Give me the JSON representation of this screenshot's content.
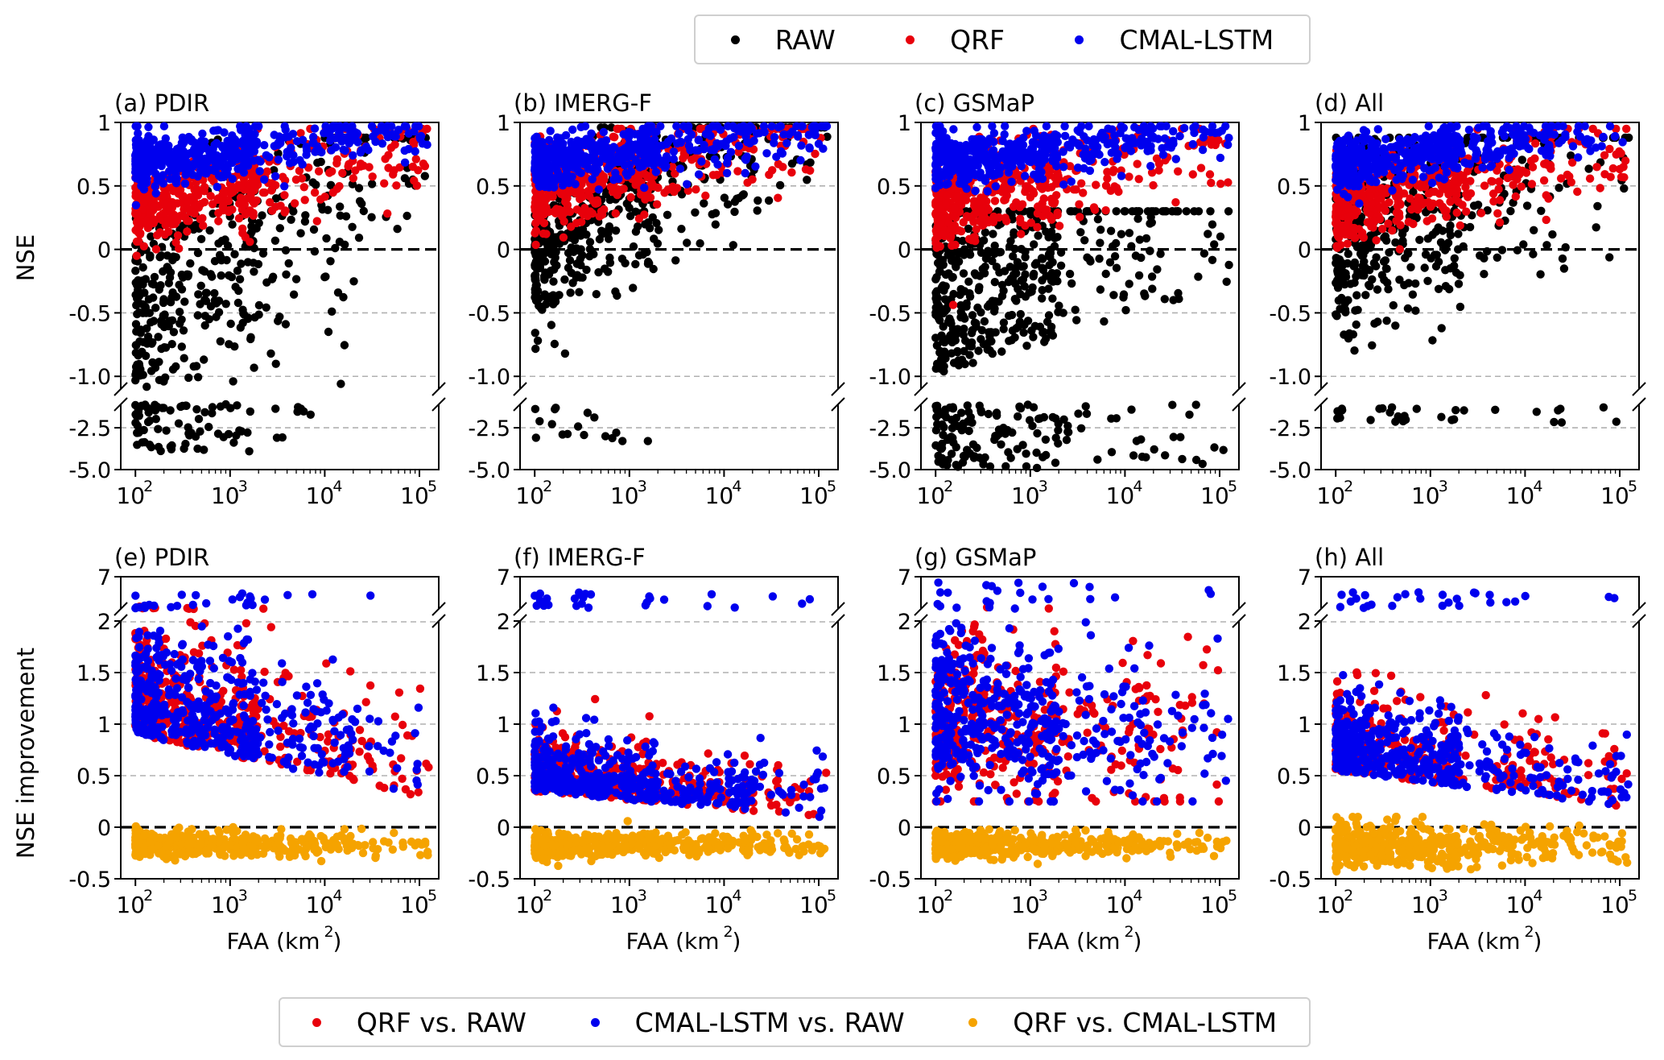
{
  "colors": {
    "raw": "#000000",
    "qrf": "#e8000b",
    "lstm": "#0000ee",
    "qrf_vs_lstm": "#f5a300",
    "grid": "#b0b0b0"
  },
  "legend_top": {
    "items": [
      {
        "label": "RAW",
        "color": "#000000"
      },
      {
        "label": "QRF",
        "color": "#e8000b"
      },
      {
        "label": "CMAL-LSTM",
        "color": "#0000ee"
      }
    ]
  },
  "legend_bottom": {
    "items": [
      {
        "label": "QRF vs. RAW",
        "color": "#e8000b"
      },
      {
        "label": "CMAL-LSTM vs. RAW",
        "color": "#0000ee"
      },
      {
        "label": "QRF vs. CMAL-LSTM",
        "color": "#f5a300"
      }
    ]
  },
  "chart_data": [
    {
      "panel": "(a) PDIR",
      "type": "scatter",
      "ylabel": "NSE",
      "xscale": "log",
      "xlim": [
        70,
        160000
      ],
      "yticks_main": [
        "1",
        "0.5",
        "0",
        "-0.5",
        "-1.0"
      ],
      "yticks_broken": [
        "-2.5",
        "-5.0"
      ],
      "ylim_main": [
        -1.1,
        1
      ],
      "ylim_broken": [
        -5,
        -1.1
      ],
      "series": [
        {
          "name": "RAW",
          "summary": {
            "x_range": [
              100,
              120000
            ],
            "y_range": [
              -4.2,
              0.85
            ]
          }
        },
        {
          "name": "QRF",
          "summary": {
            "x_range": [
              100,
              120000
            ],
            "y_range": [
              0.15,
              0.85
            ]
          }
        },
        {
          "name": "CMAL-LSTM",
          "summary": {
            "x_range": [
              100,
              120000
            ],
            "y_range": [
              0.35,
              0.95
            ]
          }
        }
      ]
    },
    {
      "panel": "(b) IMERG-F",
      "type": "scatter",
      "xscale": "log",
      "xlim": [
        70,
        160000
      ],
      "yticks_main": [
        "1",
        "0.5",
        "0",
        "-0.5",
        "-1.0"
      ],
      "yticks_broken": [
        "-2.5",
        "-5.0"
      ],
      "series": [
        {
          "name": "RAW",
          "summary": {
            "x_range": [
              100,
              120000
            ],
            "y_range": [
              -3.3,
              0.95
            ]
          }
        },
        {
          "name": "QRF",
          "summary": {
            "x_range": [
              100,
              120000
            ],
            "y_range": [
              0.1,
              0.95
            ]
          }
        },
        {
          "name": "CMAL-LSTM",
          "summary": {
            "x_range": [
              100,
              120000
            ],
            "y_range": [
              0.3,
              0.97
            ]
          }
        }
      ]
    },
    {
      "panel": "(c) GSMaP",
      "type": "scatter",
      "xscale": "log",
      "xlim": [
        70,
        160000
      ],
      "yticks_main": [
        "1",
        "0.5",
        "0",
        "-0.5",
        "-1.0"
      ],
      "yticks_broken": [
        "-2.5",
        "-5.0"
      ],
      "series": [
        {
          "name": "RAW",
          "summary": {
            "x_range": [
              100,
              120000
            ],
            "y_range": [
              -5,
              0.3
            ]
          }
        },
        {
          "name": "QRF",
          "summary": {
            "x_range": [
              100,
              120000
            ],
            "y_range": [
              0.15,
              0.85
            ]
          }
        },
        {
          "name": "CMAL-LSTM",
          "summary": {
            "x_range": [
              100,
              120000
            ],
            "y_range": [
              0.35,
              0.97
            ]
          }
        }
      ]
    },
    {
      "panel": "(d) All",
      "type": "scatter",
      "xscale": "log",
      "xlim": [
        70,
        160000
      ],
      "yticks_main": [
        "1",
        "0.5",
        "0",
        "-0.5",
        "-1.0"
      ],
      "yticks_broken": [
        "-2.5",
        "-5.0"
      ],
      "series": [
        {
          "name": "RAW",
          "summary": {
            "x_range": [
              100,
              120000
            ],
            "y_range": [
              -2.3,
              0.85
            ]
          }
        },
        {
          "name": "QRF",
          "summary": {
            "x_range": [
              100,
              120000
            ],
            "y_range": [
              0.05,
              0.9
            ]
          }
        },
        {
          "name": "CMAL-LSTM",
          "summary": {
            "x_range": [
              100,
              120000
            ],
            "y_range": [
              0.3,
              0.95
            ]
          }
        }
      ]
    },
    {
      "panel": "(e) PDIR",
      "type": "scatter",
      "ylabel": "NSE improvement",
      "xlabel": "FAA (km2)",
      "xscale": "log",
      "xlim": [
        70,
        160000
      ],
      "yticks_main": [
        "2",
        "1.5",
        "1",
        "0.5",
        "0",
        "-0.5"
      ],
      "yticks_broken": [
        "7"
      ],
      "ylim_main": [
        -0.5,
        2
      ],
      "ylim_broken": [
        2,
        7
      ],
      "series": [
        {
          "name": "QRF vs. RAW",
          "summary": {
            "x_range": [
              100,
              120000
            ],
            "y_range": [
              -0.05,
              2
            ]
          }
        },
        {
          "name": "CMAL-LSTM vs. RAW",
          "summary": {
            "x_range": [
              100,
              120000
            ],
            "y_range": [
              0.05,
              6
            ]
          }
        },
        {
          "name": "QRF vs. CMAL-LSTM",
          "summary": {
            "x_range": [
              100,
              120000
            ],
            "y_range": [
              -0.27,
              0.1
            ]
          }
        }
      ]
    },
    {
      "panel": "(f) IMERG-F",
      "type": "scatter",
      "xlabel": "FAA (km2)",
      "xscale": "log",
      "xlim": [
        70,
        160000
      ],
      "yticks_main": [
        "2",
        "1.5",
        "1",
        "0.5",
        "0",
        "-0.5"
      ],
      "yticks_broken": [
        "7"
      ],
      "series": [
        {
          "name": "QRF vs. RAW",
          "summary": {
            "x_range": [
              100,
              120000
            ],
            "y_range": [
              -0.05,
              1.9
            ]
          }
        },
        {
          "name": "CMAL-LSTM vs. RAW",
          "summary": {
            "x_range": [
              100,
              120000
            ],
            "y_range": [
              -0.05,
              5
            ]
          }
        },
        {
          "name": "QRF vs. CMAL-LSTM",
          "summary": {
            "x_range": [
              100,
              120000
            ],
            "y_range": [
              -0.42,
              0.05
            ]
          }
        }
      ]
    },
    {
      "panel": "(g) GSMaP",
      "type": "scatter",
      "xlabel": "FAA (km2)",
      "xscale": "log",
      "xlim": [
        70,
        160000
      ],
      "yticks_main": [
        "2",
        "1.5",
        "1",
        "0.5",
        "0",
        "-0.5"
      ],
      "yticks_broken": [
        "7"
      ],
      "series": [
        {
          "name": "QRF vs. RAW",
          "summary": {
            "x_range": [
              100,
              120000
            ],
            "y_range": [
              0.2,
              2
            ]
          }
        },
        {
          "name": "CMAL-LSTM vs. RAW",
          "summary": {
            "x_range": [
              100,
              120000
            ],
            "y_range": [
              0.3,
              6.5
            ]
          }
        },
        {
          "name": "QRF vs. CMAL-LSTM",
          "summary": {
            "x_range": [
              100,
              120000
            ],
            "y_range": [
              -0.28,
              0.15
            ]
          }
        }
      ]
    },
    {
      "panel": "(h) All",
      "type": "scatter",
      "xlabel": "FAA (km2)",
      "xscale": "log",
      "xlim": [
        70,
        160000
      ],
      "yticks_main": [
        "2",
        "1.5",
        "1",
        "0.5",
        "0",
        "-0.5"
      ],
      "yticks_broken": [
        "7"
      ],
      "series": [
        {
          "name": "QRF vs. RAW",
          "summary": {
            "x_range": [
              100,
              120000
            ],
            "y_range": [
              -0.05,
              2
            ]
          }
        },
        {
          "name": "CMAL-LSTM vs. RAW",
          "summary": {
            "x_range": [
              100,
              120000
            ],
            "y_range": [
              0.05,
              4
            ]
          }
        },
        {
          "name": "QRF vs. CMAL-LSTM",
          "summary": {
            "x_range": [
              100,
              120000
            ],
            "y_range": [
              -0.5,
              0.05
            ]
          }
        }
      ]
    }
  ]
}
